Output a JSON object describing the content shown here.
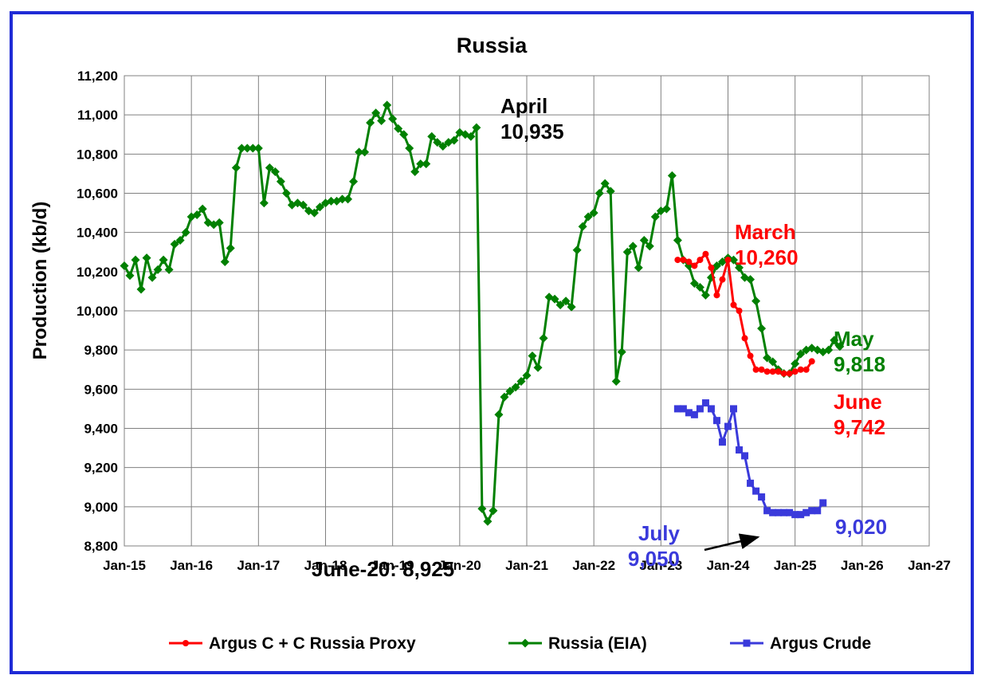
{
  "chart_data": {
    "type": "line",
    "title": "Russia",
    "xlabel": "",
    "ylabel": "Production (kb/d)",
    "ylim": [
      8800,
      11200
    ],
    "y_ticks": [
      "8,800",
      "9,000",
      "9,200",
      "9,400",
      "9,600",
      "9,800",
      "10,000",
      "10,200",
      "10,400",
      "10,600",
      "10,800",
      "11,000",
      "11,200"
    ],
    "x_ticks": [
      "Jan-15",
      "Jan-16",
      "Jan-17",
      "Jan-18",
      "Jan-19",
      "Jan-20",
      "Jan-21",
      "Jan-22",
      "Jan-23",
      "Jan-24",
      "Jan-25",
      "Jan-26",
      "Jan-27"
    ],
    "grid": true,
    "legend_position": "bottom",
    "series": [
      {
        "name": "Argus C + C Russia Proxy",
        "color": "#ff0000",
        "marker": "circle",
        "start": "Apr-23",
        "values": [
          10260,
          10260,
          10250,
          10230,
          10260,
          10290,
          10220,
          10080,
          10160,
          10260,
          10030,
          10000,
          9860,
          9770,
          9700,
          9700,
          9690,
          9690,
          9690,
          9680,
          9680,
          9690,
          9700,
          9700,
          9742
        ]
      },
      {
        "name": "Russia (EIA)",
        "color": "#008000",
        "marker": "diamond",
        "start": "Jan-15",
        "values": [
          10230,
          10180,
          10260,
          10110,
          10270,
          10170,
          10210,
          10260,
          10210,
          10340,
          10360,
          10400,
          10480,
          10490,
          10520,
          10450,
          10440,
          10450,
          10250,
          10320,
          10730,
          10830,
          10830,
          10830,
          10830,
          10550,
          10730,
          10710,
          10660,
          10600,
          10540,
          10550,
          10540,
          10510,
          10500,
          10530,
          10550,
          10560,
          10560,
          10570,
          10570,
          10660,
          10810,
          10810,
          10960,
          11010,
          10970,
          11050,
          10980,
          10930,
          10900,
          10830,
          10710,
          10750,
          10750,
          10890,
          10860,
          10840,
          10860,
          10870,
          10910,
          10900,
          10890,
          10935,
          8990,
          8925,
          8980,
          9470,
          9560,
          9590,
          9610,
          9640,
          9670,
          9770,
          9710,
          9860,
          10070,
          10060,
          10030,
          10050,
          10020,
          10310,
          10430,
          10480,
          10500,
          10600,
          10650,
          10610,
          9640,
          9790,
          10300,
          10330,
          10220,
          10360,
          10330,
          10480,
          10510,
          10520,
          10690,
          10360,
          10260,
          10230,
          10140,
          10120,
          10080,
          10170,
          10230,
          10250,
          10270,
          10260,
          10220,
          10170,
          10160,
          10050,
          9910,
          9760,
          9740,
          9700,
          9680,
          9680,
          9730,
          9780,
          9800,
          9810,
          9800,
          9790,
          9800,
          9850,
          9818
        ]
      },
      {
        "name": "Argus Crude",
        "color": "#3a3adb",
        "marker": "square",
        "start": "Apr-23",
        "values": [
          9500,
          9500,
          9480,
          9470,
          9500,
          9530,
          9500,
          9440,
          9330,
          9410,
          9500,
          9290,
          9260,
          9120,
          9080,
          9050,
          8980,
          8970,
          8970,
          8970,
          8970,
          8960,
          8960,
          8970,
          8980,
          8980,
          9020
        ]
      }
    ],
    "annotations": [
      {
        "lines": [
          "April",
          "10,935"
        ],
        "color": "#000000"
      },
      {
        "lines": [
          "March",
          "10,260"
        ],
        "color": "#ff0000"
      },
      {
        "lines": [
          "May",
          "9,818"
        ],
        "color": "#008000"
      },
      {
        "lines": [
          "June",
          "9,742"
        ],
        "color": "#ff0000"
      },
      {
        "lines": [
          "9,020"
        ],
        "color": "#3a3adb"
      },
      {
        "lines": [
          "July",
          "9,050"
        ],
        "color": "#3a3adb"
      },
      {
        "lines": [
          "June-20: 8,925"
        ],
        "color": "#000000"
      }
    ]
  }
}
